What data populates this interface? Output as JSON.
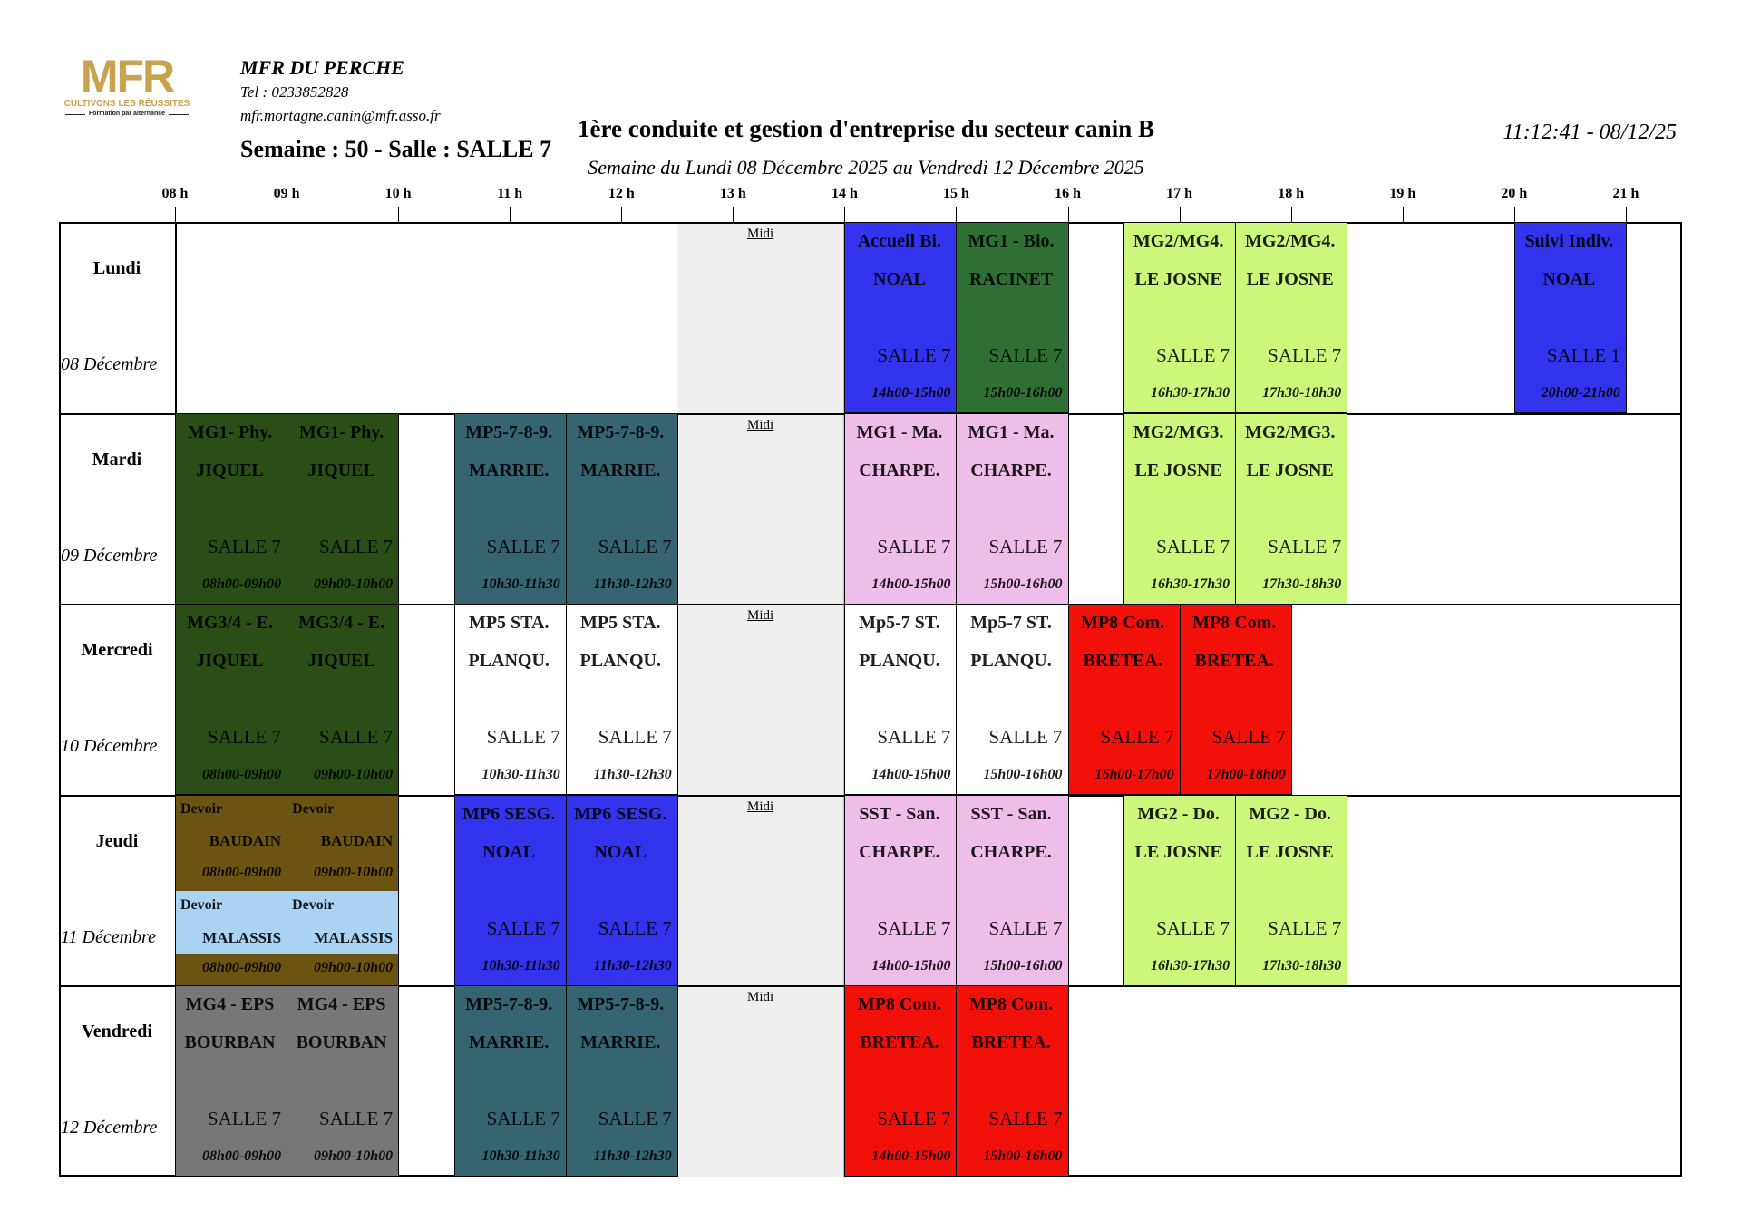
{
  "logo": {
    "mark": "MFR",
    "tagline": "CULTIVONS LES RÉUSSITES",
    "subline": "Formation par alternance",
    "color": "#c9a24d"
  },
  "header": {
    "org_name": "MFR DU PERCHE",
    "tel": "Tel : 0233852828",
    "email": "mfr.mortagne.canin@mfr.asso.fr",
    "week_room": "Semaine : 50 - Salle : SALLE 7",
    "title": "1ère conduite et gestion d'entreprise du secteur canin B",
    "subtitle": "Semaine du Lundi 08 Décembre 2025 au Vendredi 12 Décembre 2025",
    "printed": "11:12:41 - 08/12/25"
  },
  "hours": [
    "08 h",
    "09 h",
    "10 h",
    "11 h",
    "12 h",
    "13 h",
    "14 h",
    "15 h",
    "16 h",
    "17 h",
    "18 h",
    "19 h",
    "20 h",
    "21 h"
  ],
  "lunch": {
    "label": "Midi",
    "time": "12h30-14h00",
    "color": "#efefef"
  },
  "days": [
    {
      "name": "Lundi",
      "date": "08 Décembre",
      "sessions": [
        {
          "title": "Accueil Bi.",
          "teacher": "NOAL",
          "room": "SALLE 7",
          "time": "14h00-15h00",
          "color": "#3333ee"
        },
        {
          "title": "MG1 - Bio.",
          "teacher": "RACINET",
          "room": "SALLE 7",
          "time": "15h00-16h00",
          "color": "#2e7034"
        },
        {
          "title": "MG2/MG4.",
          "teacher": "LE JOSNE",
          "room": "SALLE 7",
          "time": "16h30-17h30",
          "color": "#cdf77b"
        },
        {
          "title": "MG2/MG4.",
          "teacher": "LE JOSNE",
          "room": "SALLE 7",
          "time": "17h30-18h30",
          "color": "#cdf77b"
        },
        {
          "title": "Suivi Indiv.",
          "teacher": "NOAL",
          "room": "SALLE 1",
          "time": "20h00-21h00",
          "color": "#3333ee"
        }
      ]
    },
    {
      "name": "Mardi",
      "date": "09 Décembre",
      "sessions": [
        {
          "title": "MG1- Phy.",
          "teacher": "JIQUEL",
          "room": "SALLE 7",
          "time": "08h00-09h00",
          "color": "#2b4e17"
        },
        {
          "title": "MG1- Phy.",
          "teacher": "JIQUEL",
          "room": "SALLE 7",
          "time": "09h00-10h00",
          "color": "#2b4e17"
        },
        {
          "title": "MP5-7-8-9.",
          "teacher": "MARRIE.",
          "room": "SALLE 7",
          "time": "10h30-11h30",
          "color": "#356570"
        },
        {
          "title": "MP5-7-8-9.",
          "teacher": "MARRIE.",
          "room": "SALLE 7",
          "time": "11h30-12h30",
          "color": "#356570"
        },
        {
          "title": "MG1 - Ma.",
          "teacher": "CHARPE.",
          "room": "SALLE 7",
          "time": "14h00-15h00",
          "color": "#eebde8"
        },
        {
          "title": "MG1 - Ma.",
          "teacher": "CHARPE.",
          "room": "SALLE 7",
          "time": "15h00-16h00",
          "color": "#eebde8"
        },
        {
          "title": "MG2/MG3.",
          "teacher": "LE JOSNE",
          "room": "SALLE 7",
          "time": "16h30-17h30",
          "color": "#cdf77b"
        },
        {
          "title": "MG2/MG3.",
          "teacher": "LE JOSNE",
          "room": "SALLE 7",
          "time": "17h30-18h30",
          "color": "#cdf77b"
        }
      ]
    },
    {
      "name": "Mercredi",
      "date": "10 Décembre",
      "sessions": [
        {
          "title": "MG3/4 - E.",
          "teacher": "JIQUEL",
          "room": "SALLE 7",
          "time": "08h00-09h00",
          "color": "#2b4e17"
        },
        {
          "title": "MG3/4 - E.",
          "teacher": "JIQUEL",
          "room": "SALLE 7",
          "time": "09h00-10h00",
          "color": "#2b4e17"
        },
        {
          "title": "MP5 STA.",
          "teacher": "PLANQU.",
          "room": "SALLE 7",
          "time": "10h30-11h30",
          "color": "#ffffff"
        },
        {
          "title": "MP5 STA.",
          "teacher": "PLANQU.",
          "room": "SALLE 7",
          "time": "11h30-12h30",
          "color": "#ffffff"
        },
        {
          "title": "Mp5-7 ST.",
          "teacher": "PLANQU.",
          "room": "SALLE 7",
          "time": "14h00-15h00",
          "color": "#ffffff"
        },
        {
          "title": "Mp5-7 ST.",
          "teacher": "PLANQU.",
          "room": "SALLE 7",
          "time": "15h00-16h00",
          "color": "#ffffff"
        },
        {
          "title": "MP8 Com.",
          "teacher": "BRETEA.",
          "room": "SALLE 7",
          "time": "16h00-17h00",
          "color": "#f2100a"
        },
        {
          "title": "MP8 Com.",
          "teacher": "BRETEA.",
          "room": "SALLE 7",
          "time": "17h00-18h00",
          "color": "#f2100a"
        }
      ]
    },
    {
      "name": "Jeudi",
      "date": "11 Décembre",
      "sessions": [
        {
          "kind": "devoir",
          "title": "Devoir",
          "teacher": "BAUDAIN",
          "time": "08h00-09h00",
          "color": "#6b5412",
          "sub": {
            "title": "Devoir",
            "teacher": "MALASSIS",
            "time": "08h00-09h00",
            "color": "#aad2f2"
          }
        },
        {
          "kind": "devoir",
          "title": "Devoir",
          "teacher": "BAUDAIN",
          "time": "09h00-10h00",
          "color": "#6b5412",
          "sub": {
            "title": "Devoir",
            "teacher": "MALASSIS",
            "time": "09h00-10h00",
            "color": "#aad2f2"
          }
        },
        {
          "title": "MP6 SESG.",
          "teacher": "NOAL",
          "room": "SALLE 7",
          "time": "10h30-11h30",
          "color": "#3333ee"
        },
        {
          "title": "MP6 SESG.",
          "teacher": "NOAL",
          "room": "SALLE 7",
          "time": "11h30-12h30",
          "color": "#3333ee"
        },
        {
          "title": "SST - San.",
          "teacher": "CHARPE.",
          "room": "SALLE 7",
          "time": "14h00-15h00",
          "color": "#eebde8"
        },
        {
          "title": "SST - San.",
          "teacher": "CHARPE.",
          "room": "SALLE 7",
          "time": "15h00-16h00",
          "color": "#eebde8"
        },
        {
          "title": "MG2 - Do.",
          "teacher": "LE JOSNE",
          "room": "SALLE 7",
          "time": "16h30-17h30",
          "color": "#cdf77b"
        },
        {
          "title": "MG2 - Do.",
          "teacher": "LE JOSNE",
          "room": "SALLE 7",
          "time": "17h30-18h30",
          "color": "#cdf77b"
        }
      ]
    },
    {
      "name": "Vendredi",
      "date": "12 Décembre",
      "sessions": [
        {
          "title": "MG4 - EPS",
          "teacher": "BOURBAN",
          "room": "SALLE 7",
          "time": "08h00-09h00",
          "color": "#777777"
        },
        {
          "title": "MG4 - EPS",
          "teacher": "BOURBAN",
          "room": "SALLE 7",
          "time": "09h00-10h00",
          "color": "#777777"
        },
        {
          "title": "MP5-7-8-9.",
          "teacher": "MARRIE.",
          "room": "SALLE 7",
          "time": "10h30-11h30",
          "color": "#356570"
        },
        {
          "title": "MP5-7-8-9.",
          "teacher": "MARRIE.",
          "room": "SALLE 7",
          "time": "11h30-12h30",
          "color": "#356570"
        },
        {
          "title": "MP8 Com.",
          "teacher": "BRETEA.",
          "room": "SALLE 7",
          "time": "14h00-15h00",
          "color": "#f2100a"
        },
        {
          "title": "MP8 Com.",
          "teacher": "BRETEA.",
          "room": "SALLE 7",
          "time": "15h00-16h00",
          "color": "#f2100a"
        }
      ]
    }
  ]
}
